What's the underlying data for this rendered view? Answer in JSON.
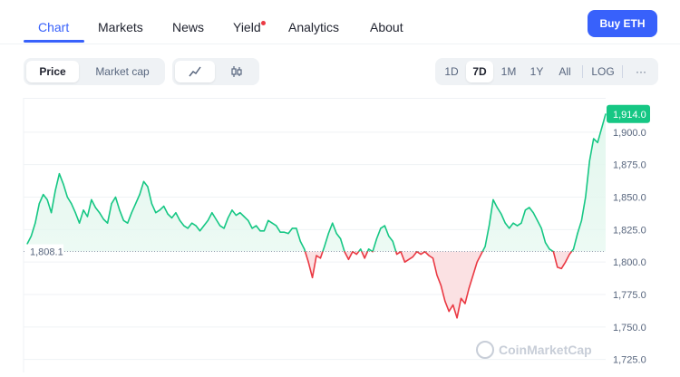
{
  "nav": {
    "tabs": [
      {
        "label": "Chart",
        "active": true
      },
      {
        "label": "Markets",
        "active": false
      },
      {
        "label": "News",
        "active": false
      },
      {
        "label": "Yield",
        "active": false,
        "badge": true
      },
      {
        "label": "Analytics",
        "active": false
      },
      {
        "label": "About",
        "active": false
      }
    ],
    "buy_label": "Buy ETH"
  },
  "controls": {
    "metric": [
      "Price",
      "Market cap"
    ],
    "metric_active": "Price",
    "chart_style_icons": [
      "line-chart-icon",
      "candlestick-icon"
    ],
    "ranges": [
      "1D",
      "7D",
      "1M",
      "1Y",
      "All"
    ],
    "range_active": "7D",
    "log_label": "LOG",
    "more_label": "···"
  },
  "chart_data": {
    "type": "area",
    "baseline": 1808.1,
    "baseline_label": "1,808.1",
    "last_price": 1914.0,
    "last_price_label": "1,914.0",
    "ylim": [
      1715,
      1925
    ],
    "y_ticks": [
      1900,
      1875,
      1850,
      1825,
      1800,
      1775,
      1750,
      1725
    ],
    "y_tick_labels": [
      "1,900.0",
      "1,875.0",
      "1,850.0",
      "1,825.0",
      "1,800.0",
      "1,775.0",
      "1,750.0",
      "1,725.0"
    ],
    "colors": {
      "up": "#16c784",
      "down": "#ea3943",
      "up_fill": "#e3f7ee",
      "down_fill": "#fbe1e3"
    },
    "watermark": "CoinMarketCap",
    "series": [
      {
        "values": [
          1814,
          1820,
          1830,
          1845,
          1852,
          1848,
          1838,
          1855,
          1868,
          1860,
          1850,
          1845,
          1838,
          1830,
          1840,
          1835,
          1848,
          1842,
          1838,
          1833,
          1830,
          1845,
          1850,
          1840,
          1832,
          1830,
          1838,
          1845,
          1852,
          1862,
          1858,
          1845,
          1838,
          1840,
          1843,
          1837,
          1834,
          1838,
          1832,
          1828,
          1826,
          1830,
          1828,
          1824,
          1828,
          1832,
          1838,
          1833,
          1828,
          1826,
          1834,
          1840,
          1836,
          1838,
          1835,
          1832,
          1826,
          1828,
          1824,
          1824,
          1832,
          1830,
          1828,
          1823,
          1823,
          1822,
          1826,
          1826,
          1816,
          1810,
          1800,
          1788,
          1805,
          1803,
          1812,
          1822,
          1830,
          1822,
          1818,
          1808,
          1802,
          1808,
          1806,
          1810,
          1803,
          1810,
          1808,
          1818,
          1826,
          1828,
          1820,
          1816,
          1806,
          1808,
          1800,
          1802,
          1804,
          1808,
          1806,
          1808,
          1805,
          1803,
          1790,
          1782,
          1770,
          1762,
          1767,
          1757,
          1772,
          1768,
          1780,
          1790,
          1800,
          1806,
          1812,
          1828,
          1848,
          1842,
          1837,
          1830,
          1826,
          1830,
          1828,
          1830,
          1840,
          1842,
          1838,
          1832,
          1826,
          1815,
          1810,
          1808,
          1796,
          1795,
          1800,
          1806,
          1810,
          1822,
          1832,
          1850,
          1878,
          1895,
          1892,
          1903,
          1914
        ]
      }
    ]
  }
}
